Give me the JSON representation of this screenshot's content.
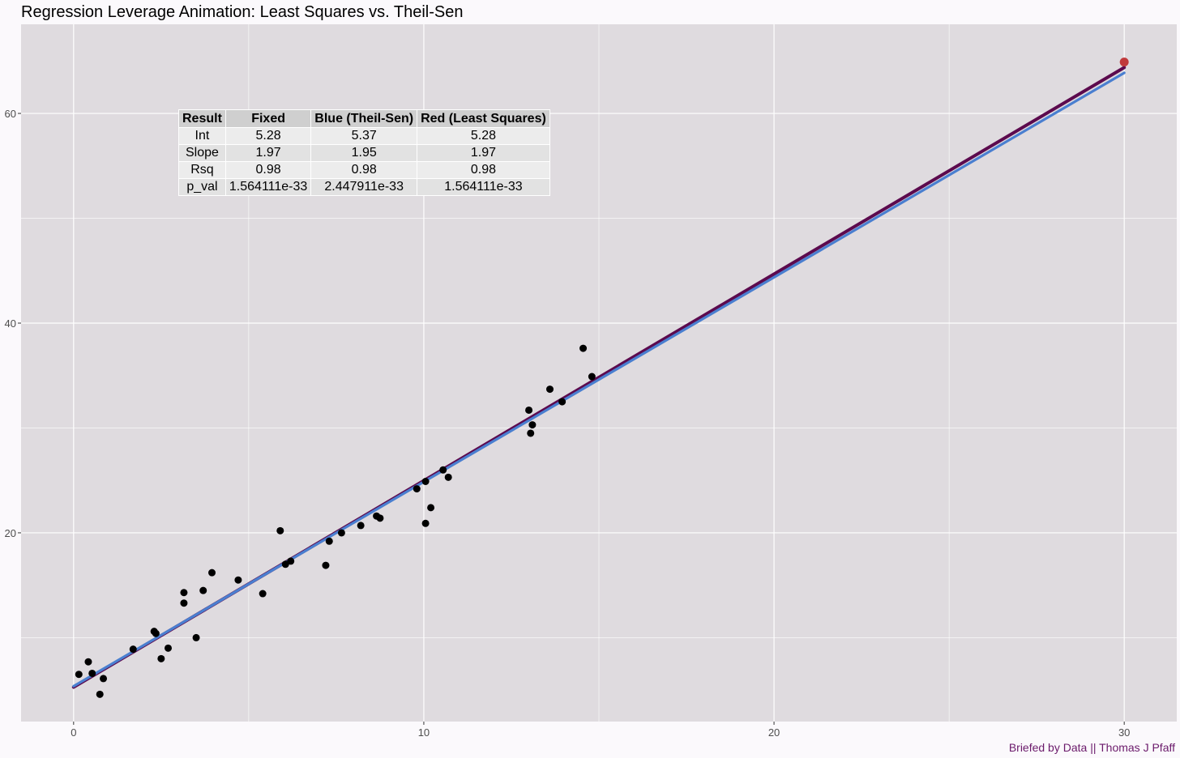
{
  "chart_data": {
    "type": "scatter",
    "title": "Regression Leverage Animation: Least Squares vs. Theil-Sen",
    "xlabel": "",
    "ylabel": "",
    "xlim": [
      -1.5,
      31.5
    ],
    "ylim": [
      2.0,
      68.5
    ],
    "x_ticks": [
      0,
      10,
      20,
      30
    ],
    "y_ticks": [
      20,
      40,
      60
    ],
    "grid": true,
    "caption": "Briefed by Data || Thomas J Pfaff",
    "colors": {
      "panel_background": "#dfdbdf",
      "plot_background": "#fbf9fc",
      "grid": "#ffffff",
      "points": "#000000",
      "highlight_point": "#c0393b",
      "least_squares_line": "#5c0a4e",
      "theil_sen_line": "#4a7fd0",
      "caption": "#6b1a6b"
    },
    "points": [
      {
        "x": 0.15,
        "y": 6.5
      },
      {
        "x": 0.42,
        "y": 7.7
      },
      {
        "x": 0.53,
        "y": 6.6
      },
      {
        "x": 0.75,
        "y": 4.6
      },
      {
        "x": 0.85,
        "y": 6.1
      },
      {
        "x": 1.7,
        "y": 8.9
      },
      {
        "x": 2.3,
        "y": 10.6
      },
      {
        "x": 2.35,
        "y": 10.4
      },
      {
        "x": 2.5,
        "y": 8.0
      },
      {
        "x": 2.7,
        "y": 9.0
      },
      {
        "x": 3.15,
        "y": 13.3
      },
      {
        "x": 3.15,
        "y": 14.3
      },
      {
        "x": 3.5,
        "y": 10.0
      },
      {
        "x": 3.7,
        "y": 14.5
      },
      {
        "x": 3.95,
        "y": 16.2
      },
      {
        "x": 4.7,
        "y": 15.5
      },
      {
        "x": 5.4,
        "y": 14.2
      },
      {
        "x": 5.9,
        "y": 20.2
      },
      {
        "x": 6.05,
        "y": 17.0
      },
      {
        "x": 6.2,
        "y": 17.3
      },
      {
        "x": 7.2,
        "y": 16.9
      },
      {
        "x": 7.3,
        "y": 19.2
      },
      {
        "x": 7.65,
        "y": 20.0
      },
      {
        "x": 8.2,
        "y": 20.7
      },
      {
        "x": 8.65,
        "y": 21.6
      },
      {
        "x": 8.75,
        "y": 21.4
      },
      {
        "x": 9.8,
        "y": 24.2
      },
      {
        "x": 10.05,
        "y": 24.9
      },
      {
        "x": 10.05,
        "y": 20.9
      },
      {
        "x": 10.2,
        "y": 22.4
      },
      {
        "x": 10.55,
        "y": 26.0
      },
      {
        "x": 10.7,
        "y": 25.3
      },
      {
        "x": 13.0,
        "y": 31.7
      },
      {
        "x": 13.05,
        "y": 29.5
      },
      {
        "x": 13.1,
        "y": 30.3
      },
      {
        "x": 13.6,
        "y": 33.7
      },
      {
        "x": 13.95,
        "y": 32.5
      },
      {
        "x": 14.55,
        "y": 37.6
      },
      {
        "x": 14.8,
        "y": 34.9
      }
    ],
    "highlight_point": {
      "x": 30.0,
      "y": 64.9
    },
    "lines": [
      {
        "name": "Red (Least Squares)",
        "intercept": 5.28,
        "slope": 1.97,
        "x_range": [
          0,
          30
        ]
      },
      {
        "name": "Blue (Theil-Sen)",
        "intercept": 5.37,
        "slope": 1.95,
        "x_range": [
          0,
          30
        ]
      }
    ],
    "table": {
      "columns": [
        "Result",
        "Fixed",
        "Blue (Theil-Sen)",
        "Red (Least Squares)"
      ],
      "rows": [
        [
          "Int",
          "5.28",
          "5.37",
          "5.28"
        ],
        [
          "Slope",
          "1.97",
          "1.95",
          "1.97"
        ],
        [
          "Rsq",
          "0.98",
          "0.98",
          "0.98"
        ],
        [
          "p_val",
          "1.564111e-33",
          "2.447911e-33",
          "1.564111e-33"
        ]
      ]
    }
  }
}
